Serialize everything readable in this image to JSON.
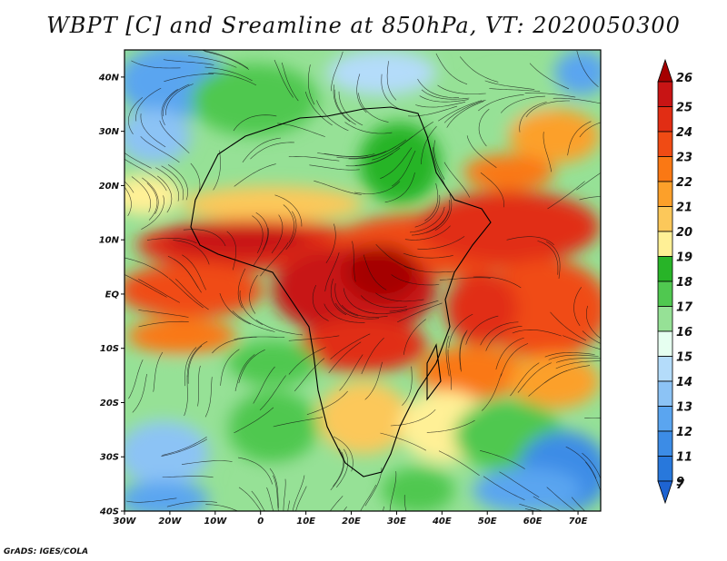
{
  "title": "WBPT [C] and Sreamline at 850hPa, VT: 2020050300",
  "credit": "GrADS: IGES/COLA",
  "map": {
    "lon_range": [
      -30,
      75
    ],
    "lat_range": [
      -40,
      45
    ],
    "lon_ticks": [
      {
        "value": -30,
        "label": "30W"
      },
      {
        "value": -20,
        "label": "20W"
      },
      {
        "value": -10,
        "label": "10W"
      },
      {
        "value": 0,
        "label": "0"
      },
      {
        "value": 10,
        "label": "10E"
      },
      {
        "value": 20,
        "label": "20E"
      },
      {
        "value": 30,
        "label": "30E"
      },
      {
        "value": 40,
        "label": "40E"
      },
      {
        "value": 50,
        "label": "50E"
      },
      {
        "value": 60,
        "label": "60E"
      },
      {
        "value": 70,
        "label": "70E"
      }
    ],
    "lat_ticks": [
      {
        "value": 40,
        "label": "40N"
      },
      {
        "value": 30,
        "label": "30N"
      },
      {
        "value": 20,
        "label": "20N"
      },
      {
        "value": 10,
        "label": "10N"
      },
      {
        "value": 0,
        "label": "EQ"
      },
      {
        "value": -10,
        "label": "10S"
      },
      {
        "value": -20,
        "label": "20S"
      },
      {
        "value": -30,
        "label": "30S"
      },
      {
        "value": -40,
        "label": "40S"
      }
    ]
  },
  "colorbar": {
    "levels": [
      {
        "label": "26",
        "color": "#a50000"
      },
      {
        "label": "25",
        "color": "#c81414"
      },
      {
        "label": "24",
        "color": "#e12d14"
      },
      {
        "label": "23",
        "color": "#f04b14"
      },
      {
        "label": "22",
        "color": "#fa7814"
      },
      {
        "label": "21",
        "color": "#fca02a"
      },
      {
        "label": "20",
        "color": "#fcc85a"
      },
      {
        "label": "19",
        "color": "#fff096"
      },
      {
        "label": "18",
        "color": "#28b428"
      },
      {
        "label": "17",
        "color": "#50c850"
      },
      {
        "label": "16",
        "color": "#96e196"
      },
      {
        "label": "15",
        "color": "#e6fff0"
      },
      {
        "label": "14",
        "color": "#b4dcfa"
      },
      {
        "label": "13",
        "color": "#8cc3f5"
      },
      {
        "label": "12",
        "color": "#5aa5f0"
      },
      {
        "label": "11",
        "color": "#3c8ce6"
      },
      {
        "label": "9",
        "color": "#2878dc"
      },
      {
        "label": "7",
        "color": "#1e64d2"
      }
    ]
  },
  "icons": {
    "graticule": "lat-lon-grid",
    "coastlines": "coastline-outline"
  }
}
